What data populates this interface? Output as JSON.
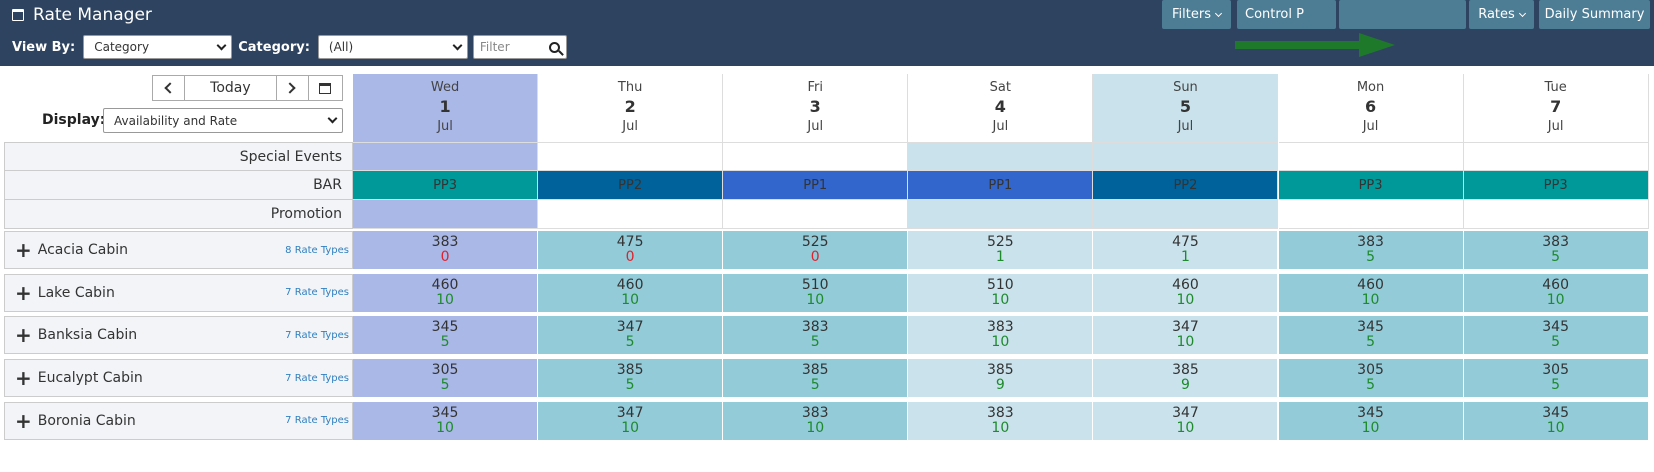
{
  "header": {
    "title": "Rate Manager",
    "icons": [
      "print-icon",
      "comment-icon",
      "filter-icon",
      "gear-icon",
      "info-icon",
      "refresh-icon",
      "close-icon"
    ]
  },
  "filters": {
    "view_by_label": "View By:",
    "view_by_value": "Category",
    "category_label": "Category:",
    "category_value": "(All)",
    "filter_placeholder": "Filter"
  },
  "buttons": {
    "filters": "Filters",
    "control_panel": "Control P",
    "rates": "Rates",
    "daily_summary": "Daily Summary"
  },
  "nav": {
    "today": "Today",
    "display_label": "Display:",
    "display_value": "Availability and Rate"
  },
  "days": [
    {
      "dow": "Wed",
      "date": "1",
      "month": "Jul"
    },
    {
      "dow": "Thu",
      "date": "2",
      "month": "Jul"
    },
    {
      "dow": "Fri",
      "date": "3",
      "month": "Jul"
    },
    {
      "dow": "Sat",
      "date": "4",
      "month": "Jul"
    },
    {
      "dow": "Sun",
      "date": "5",
      "month": "Jul"
    },
    {
      "dow": "Mon",
      "date": "6",
      "month": "Jul"
    },
    {
      "dow": "Tue",
      "date": "7",
      "month": "Jul"
    }
  ],
  "info_rows": {
    "special_events": "Special Events",
    "bar": "BAR",
    "promotion": "Promotion"
  },
  "bar_values": [
    "PP3",
    "PP2",
    "PP1",
    "PP1",
    "PP2",
    "PP3",
    "PP3"
  ],
  "rooms": [
    {
      "name": "Acacia Cabin",
      "rate_types": "8 Rate Types",
      "rates": [
        "383",
        "475",
        "525",
        "525",
        "475",
        "383",
        "383"
      ],
      "avail": [
        "0",
        "0",
        "0",
        "1",
        "1",
        "5",
        "5"
      ]
    },
    {
      "name": "Lake Cabin",
      "rate_types": "7 Rate Types",
      "rates": [
        "460",
        "460",
        "510",
        "510",
        "460",
        "460",
        "460"
      ],
      "avail": [
        "10",
        "10",
        "10",
        "10",
        "10",
        "10",
        "10"
      ]
    },
    {
      "name": "Banksia Cabin",
      "rate_types": "7 Rate Types",
      "rates": [
        "345",
        "347",
        "383",
        "383",
        "347",
        "345",
        "345"
      ],
      "avail": [
        "5",
        "5",
        "5",
        "10",
        "10",
        "5",
        "5"
      ]
    },
    {
      "name": "Eucalypt Cabin",
      "rate_types": "7 Rate Types",
      "rates": [
        "305",
        "385",
        "385",
        "385",
        "385",
        "305",
        "305"
      ],
      "avail": [
        "5",
        "5",
        "5",
        "9",
        "9",
        "5",
        "5"
      ]
    },
    {
      "name": "Boronia Cabin",
      "rate_types": "7 Rate Types",
      "rates": [
        "345",
        "347",
        "383",
        "383",
        "347",
        "345",
        "345"
      ],
      "avail": [
        "10",
        "10",
        "10",
        "10",
        "10",
        "10",
        "10"
      ]
    }
  ],
  "colors": {
    "header_bg": "#2e4360",
    "button_bg": "#4d7c95",
    "today_col": "#aab8e8",
    "weekday_cell": "#93cbd9",
    "weekend_cell": "#c9e2ec",
    "pp3": "#00999a",
    "pp2": "#00629b",
    "pp1": "#3366cc",
    "avail_zero": "#e0202a",
    "avail_positive": "#1e8a2c",
    "arrow": "#1e7a2a"
  }
}
